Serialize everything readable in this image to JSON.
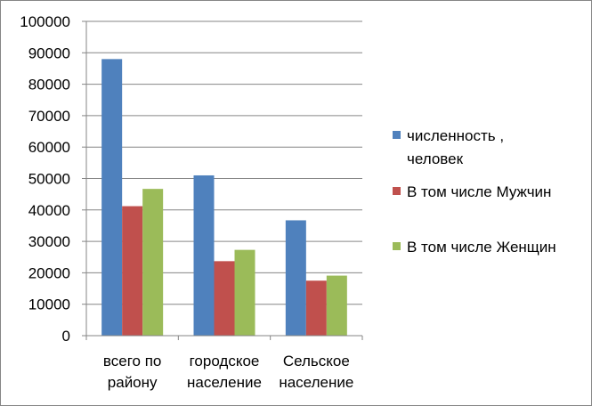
{
  "chart_data": {
    "type": "bar",
    "title": "",
    "xlabel": "",
    "ylabel": "",
    "ylim": [
      0,
      100000
    ],
    "yticks": [
      0,
      10000,
      20000,
      30000,
      40000,
      50000,
      60000,
      70000,
      80000,
      90000,
      100000
    ],
    "grid": true,
    "legend_position": "right",
    "categories": [
      [
        "всего по",
        "району"
      ],
      [
        "городское",
        "население"
      ],
      [
        "Сельское",
        "население"
      ]
    ],
    "series": [
      {
        "name": [
          "численность ,",
          "человек"
        ],
        "color": "#4f81bd",
        "values": [
          88000,
          51000,
          36700
        ]
      },
      {
        "name": [
          "В том числе Мужчин"
        ],
        "color": "#c0504d",
        "values": [
          41200,
          23700,
          17500
        ]
      },
      {
        "name": [
          "В том числе Женщин"
        ],
        "color": "#9bbb59",
        "values": [
          46700,
          27300,
          19100
        ]
      }
    ]
  }
}
